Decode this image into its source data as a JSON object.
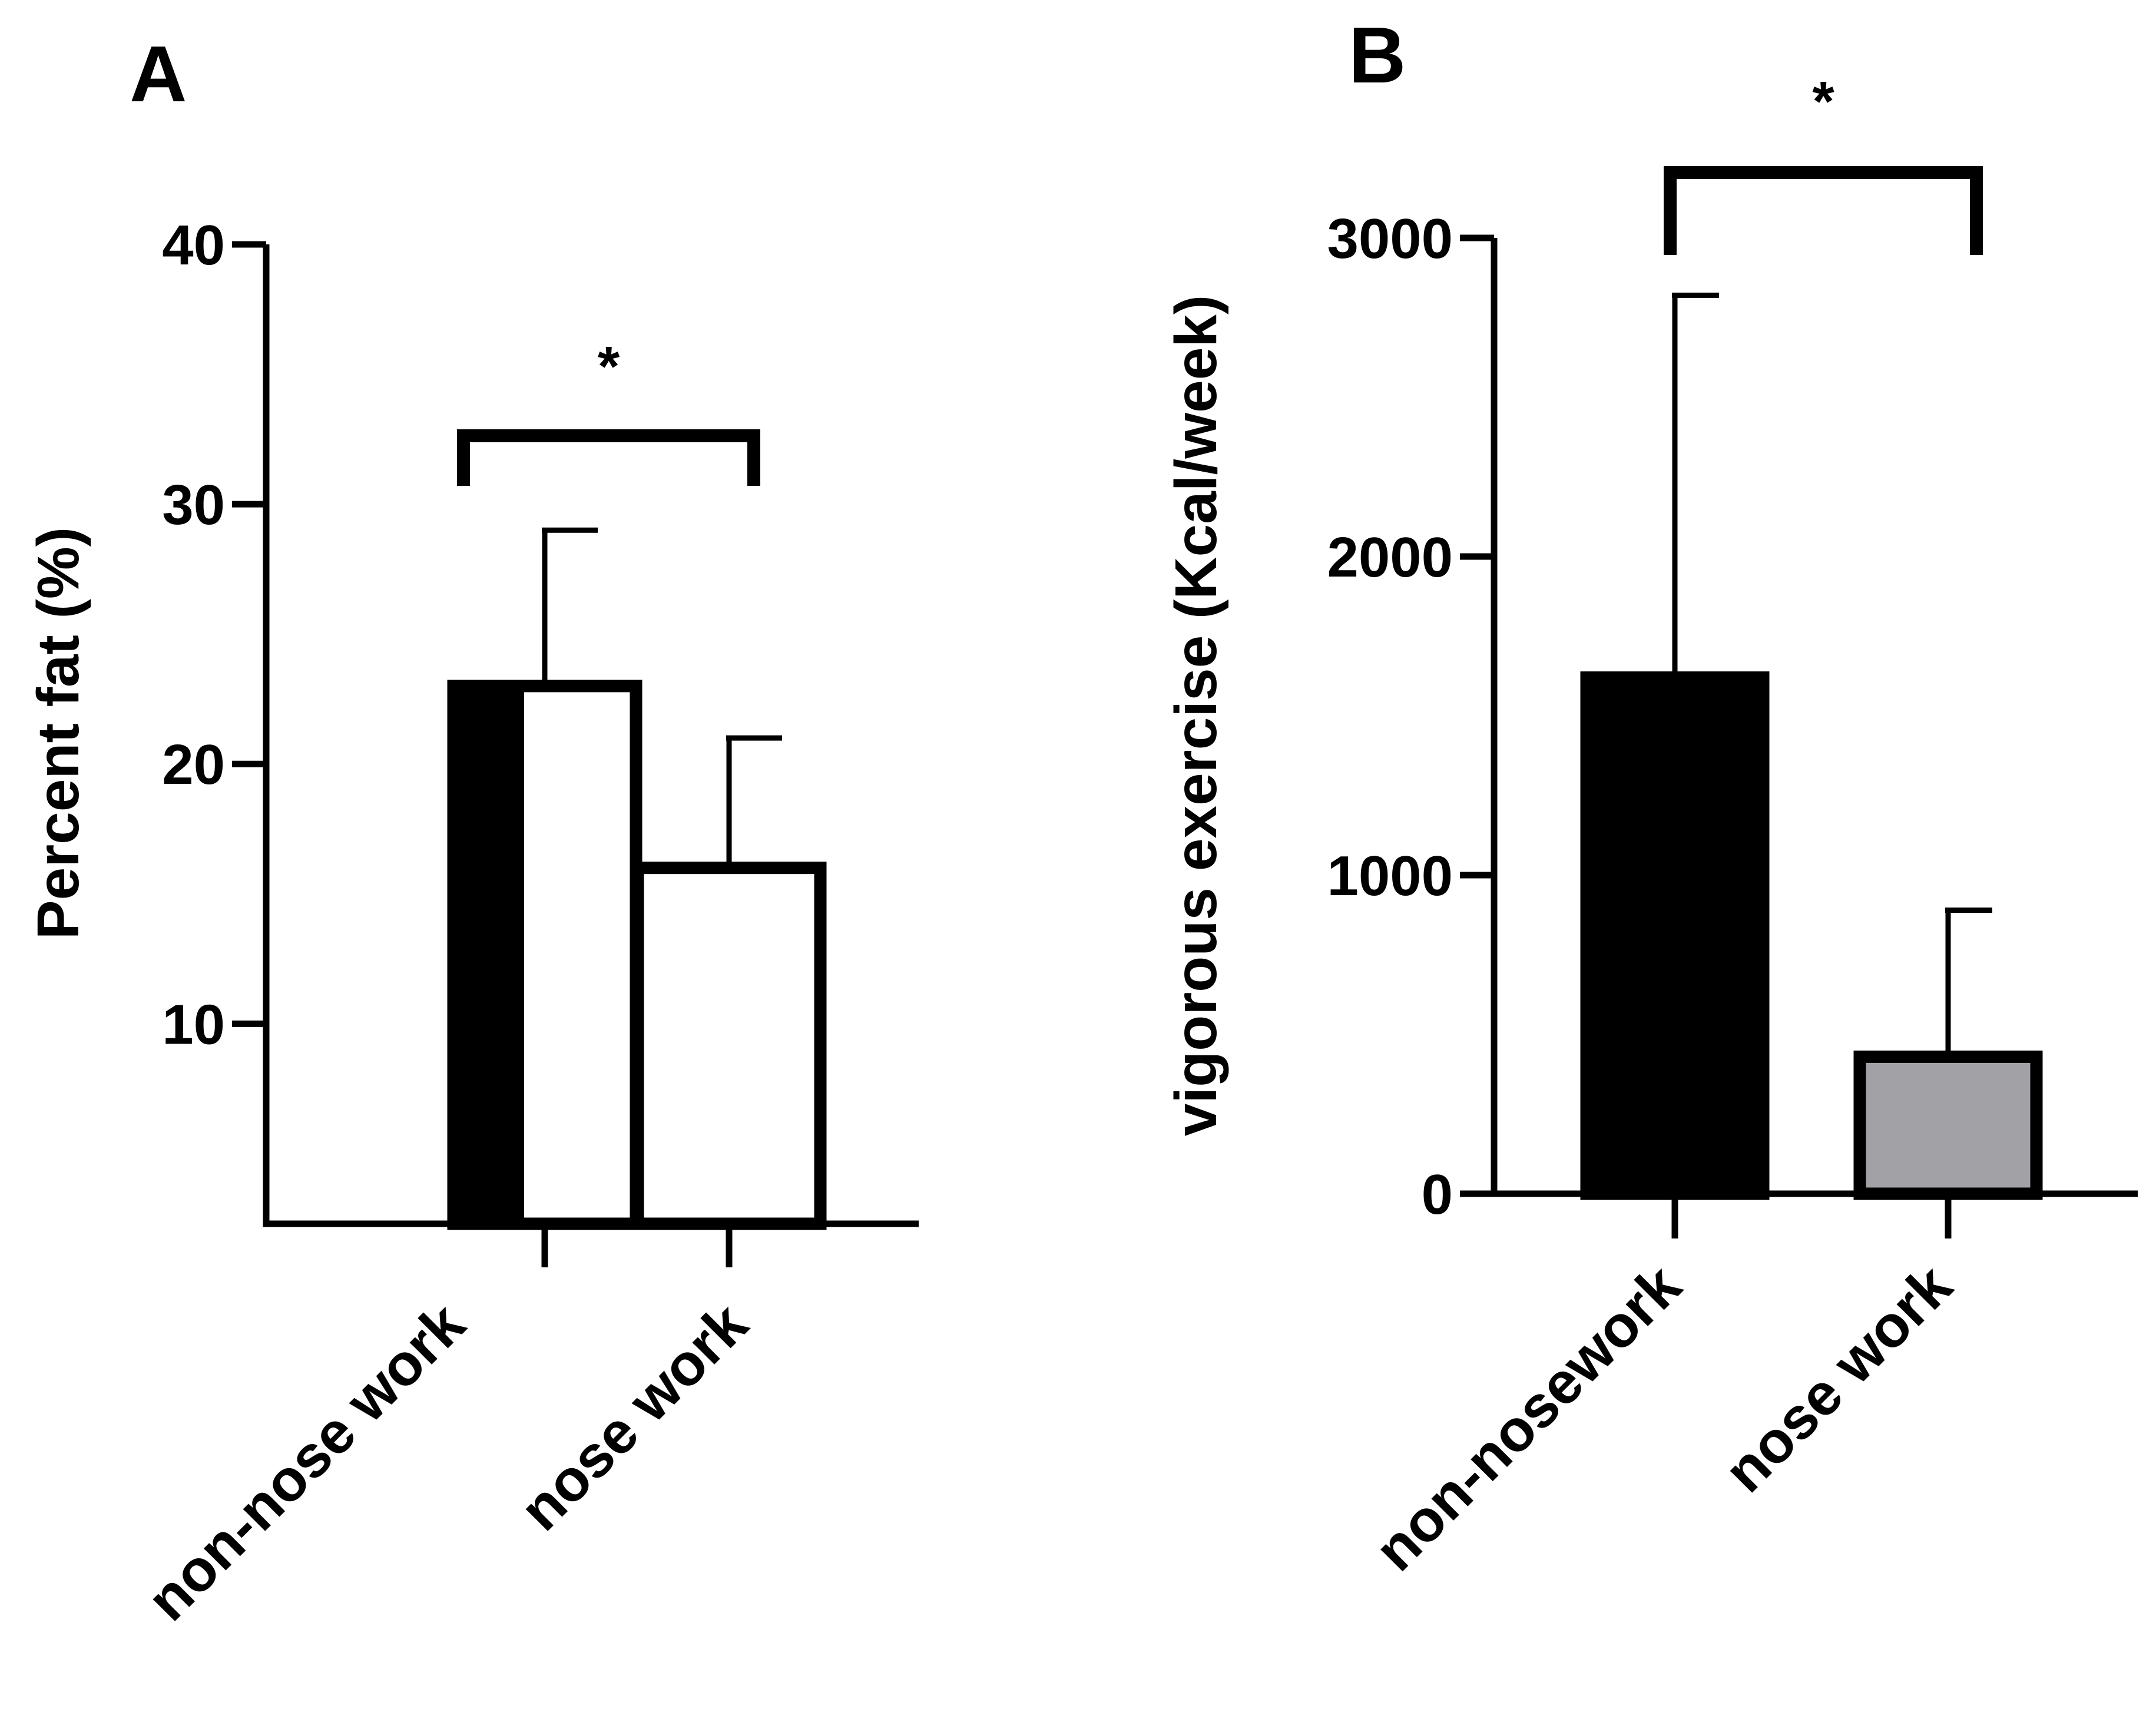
{
  "chart_data": [
    {
      "panel": "A",
      "type": "bar",
      "title": "",
      "xlabel": "",
      "ylabel": "Percent fat (%)",
      "ylim": [
        2.3,
        40
      ],
      "yticks": [
        10,
        20,
        30,
        40
      ],
      "categories": [
        "non-nose work",
        "nose work"
      ],
      "values": [
        23,
        16
      ],
      "errors": [
        6,
        5
      ],
      "bar_colors": [
        "#ffffff",
        "#ffffff"
      ],
      "significance": {
        "from": 0,
        "to": 1,
        "label": "*"
      }
    },
    {
      "panel": "B",
      "type": "bar",
      "title": "",
      "xlabel": "",
      "ylabel": "vigorous exercise (Kcal/week)",
      "ylim": [
        0,
        3000
      ],
      "yticks": [
        0,
        1000,
        2000,
        3000
      ],
      "categories": [
        "non-nosework",
        "nose work"
      ],
      "values": [
        1620,
        430
      ],
      "errors": [
        1200,
        460
      ],
      "bar_colors": [
        "#000000",
        "#a2a2a6"
      ],
      "significance": {
        "from": 0,
        "to": 1,
        "label": "*"
      }
    }
  ]
}
